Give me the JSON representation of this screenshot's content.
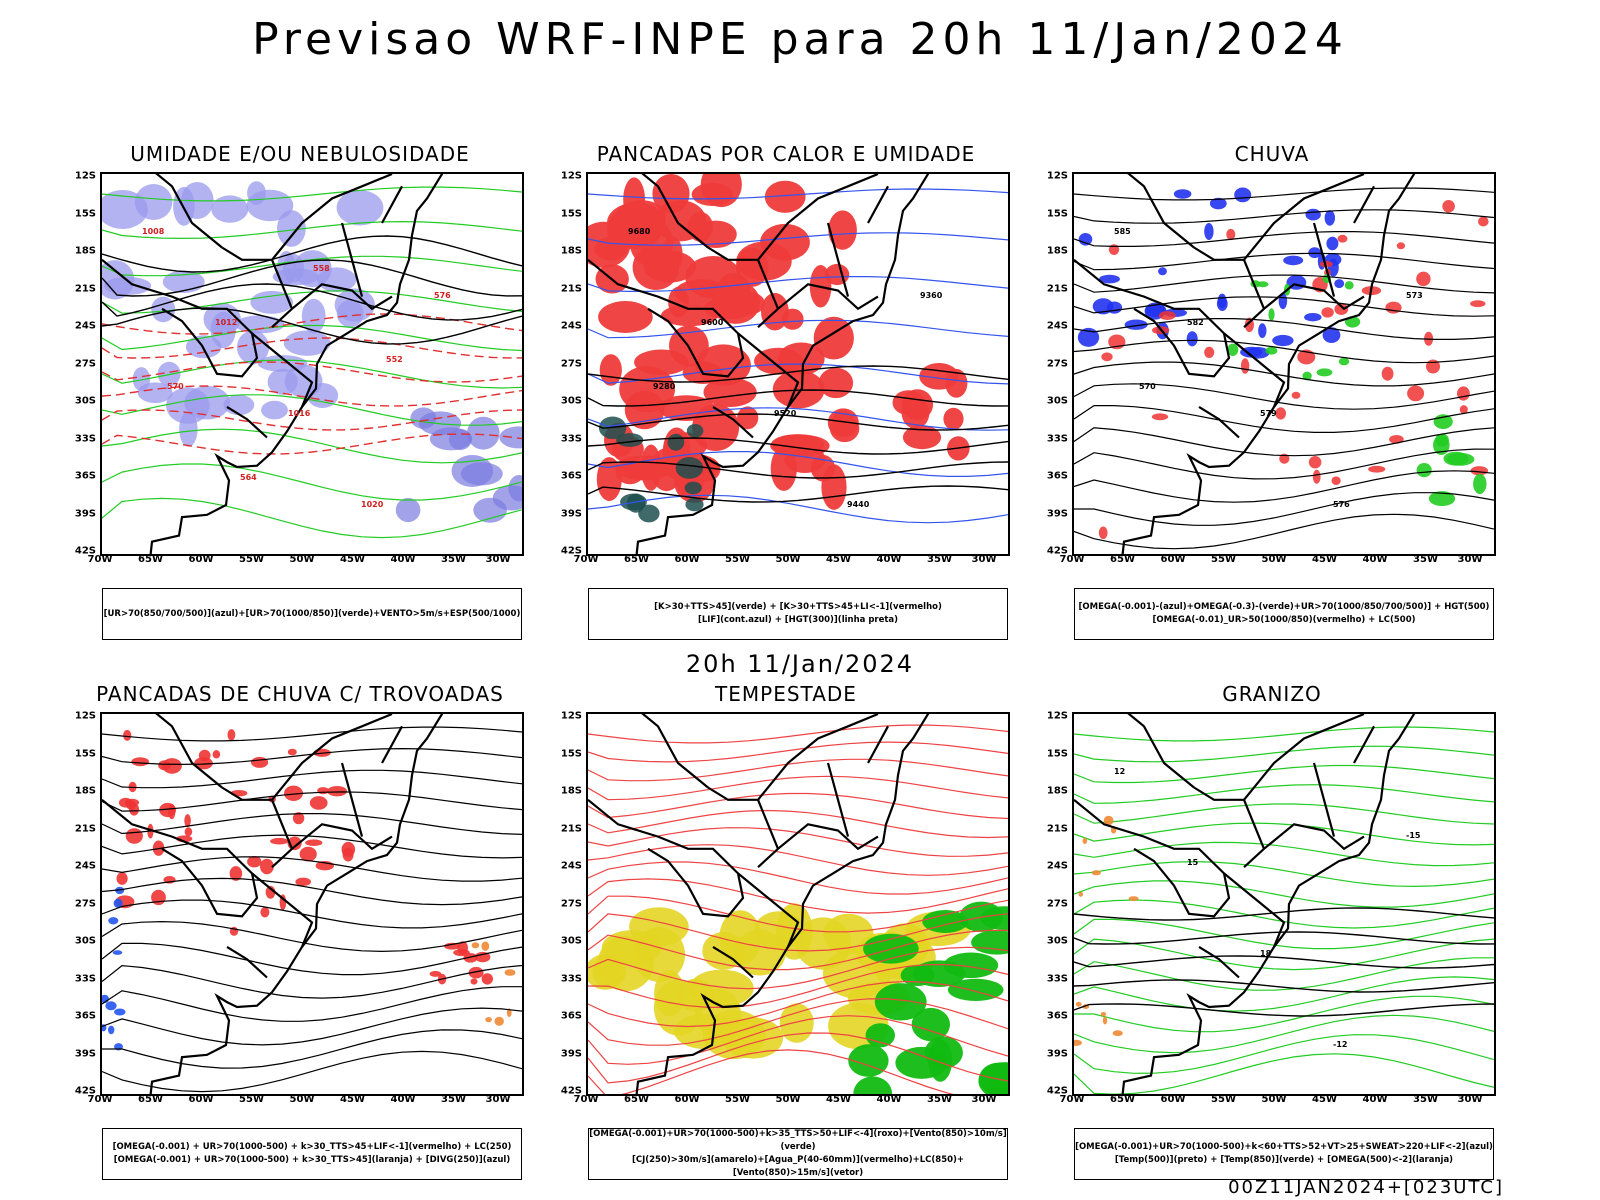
{
  "title": "Previsao WRF-INPE  para 20h 11/Jan/2024",
  "mid_title": "20h 11/Jan/2024",
  "footer": "00Z11JAN2024+[023UTC]",
  "axes": {
    "lat": [
      "12S",
      "15S",
      "18S",
      "21S",
      "24S",
      "27S",
      "30S",
      "33S",
      "36S",
      "39S",
      "42S"
    ],
    "lon": [
      "70W",
      "65W",
      "60W",
      "55W",
      "50W",
      "45W",
      "40W",
      "35W",
      "30W"
    ]
  },
  "panels": [
    {
      "title": "UMIDADE E/OU NEBULOSIDADE",
      "legend": [
        "[UR>70(850/700/500)](azul)+[UR>70(1000/850)](verde)+VENTO>5m/s+ESP(500/1000)"
      ],
      "labels": [
        "1008",
        "1012",
        "1016",
        "1020",
        "576",
        "570",
        "564",
        "558",
        "552"
      ]
    },
    {
      "title": "PANCADAS POR CALOR E UMIDADE",
      "legend": [
        "[K>30+TTS>45](verde) + [K>30+TTS>45+LI<-1](vermelho)",
        "[LIF](cont.azul) + [HGT(300)](linha preta)"
      ],
      "labels": [
        "9680",
        "9600",
        "9520",
        "9440",
        "9360",
        "9280"
      ]
    },
    {
      "title": "CHUVA",
      "legend": [
        "[OMEGA(-0.001)-(azul)+OMEGA(-0.3)-(verde)+UR>70(1000/850/700/500)] + HGT(500)",
        "[OMEGA(-0.01)_UR>50(1000/850)(vermelho) + LC(500)"
      ],
      "labels": [
        "585",
        "582",
        "579",
        "576",
        "573",
        "570"
      ]
    },
    {
      "title": "PANCADAS DE CHUVA C/ TROVOADAS",
      "legend": [
        "[OMEGA(-0.001) + UR>70(1000-500) + k>30_TTS>45+LIF<-1](vermelho) + LC(250)",
        "[OMEGA(-0.001) + UR>70(1000-500) + k>30_TTS>45](laranja) + [DIVG(250)](azul)"
      ],
      "labels": []
    },
    {
      "title": "TEMPESTADE",
      "legend": [
        "[OMEGA(-0.001)+UR>70(1000-500)+k>35_TTS>50+LIF<-4](roxo)+[Vento(850)>10m/s](verde)",
        "[CJ(250)>30m/s](amarelo)+[Agua_P(40-60mm)](vermelho)+LC(850)+[Vento(850)>15m/s](vetor)"
      ],
      "labels": []
    },
    {
      "title": "GRANIZO",
      "legend": [
        "[OMEGA(-0.001)+UR>70(1000-500)+k<60+TTS>52+VT>25+SWEAT>220+LIF<-2](azul)",
        "[Temp(500)](preto) + [Temp(850)](verde) + [OMEGA(500)<-2](laranja)"
      ],
      "labels": [
        "12",
        "15",
        "18",
        "-12",
        "-15"
      ]
    }
  ]
}
